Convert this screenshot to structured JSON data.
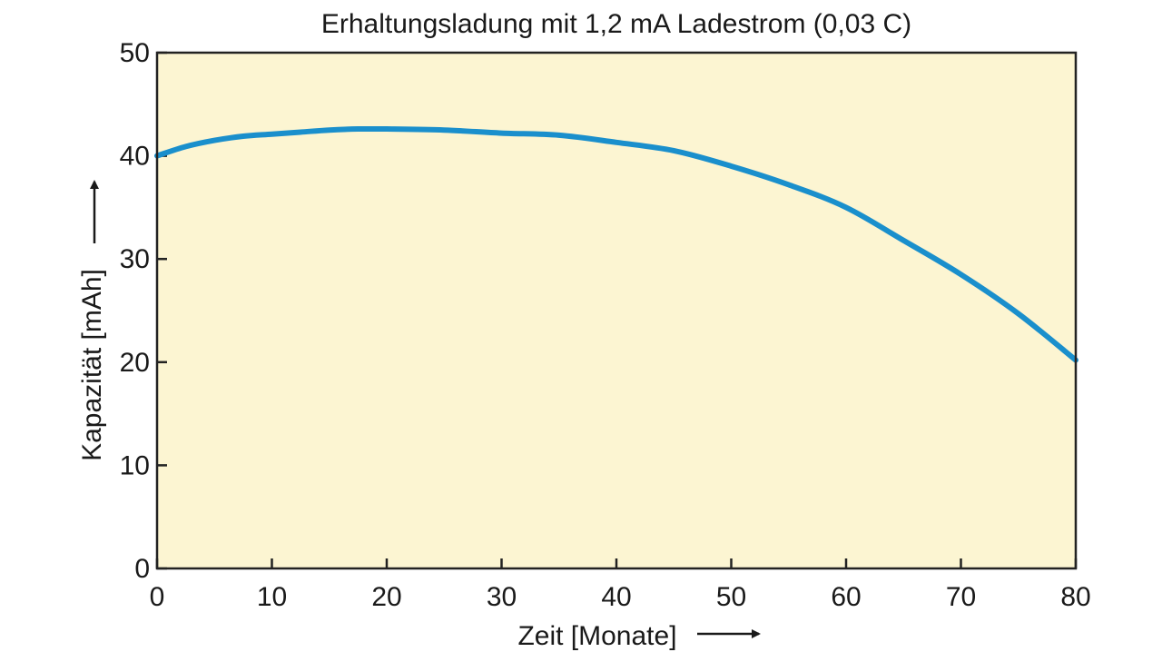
{
  "chart_data": {
    "type": "line",
    "title": "Erhaltungsladung mit 1,2 mA Ladestrom (0,03 C)",
    "xlabel": "Zeit [Monate]",
    "ylabel": "Kapazität [mAh]",
    "xlim": [
      0,
      80
    ],
    "ylim": [
      0,
      50
    ],
    "x_ticks": [
      "0",
      "10",
      "20",
      "30",
      "40",
      "50",
      "60",
      "70",
      "80"
    ],
    "y_ticks": [
      "0",
      "10",
      "20",
      "30",
      "40",
      "50"
    ],
    "grid": false,
    "legend": "none",
    "series": [
      {
        "x": [
          0,
          2.5,
          5,
          7.5,
          10,
          12.5,
          15,
          17.5,
          20,
          25,
          30,
          35,
          40,
          45,
          50,
          55,
          60,
          65,
          70,
          75,
          80
        ],
        "y": [
          40,
          40.9,
          41.5,
          41.9,
          42.1,
          42.3,
          42.5,
          42.6,
          42.6,
          42.5,
          42.2,
          42.0,
          41.3,
          40.5,
          39.0,
          37.2,
          35.0,
          31.8,
          28.5,
          24.7,
          20.2
        ]
      }
    ],
    "colors": {
      "line": "#1a8fcc",
      "plot_background": "#fcf5d2",
      "axis": "#222222",
      "text": "#1a1a1a"
    }
  }
}
